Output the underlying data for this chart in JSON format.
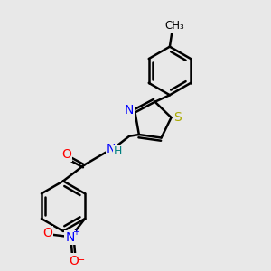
{
  "background_color": "#e8e8e8",
  "bond_color": "#000000",
  "bond_width": 1.8,
  "atom_colors": {
    "N": "#0000ff",
    "O": "#ff0000",
    "S": "#aaaa00",
    "C": "#000000",
    "H": "#008080"
  }
}
